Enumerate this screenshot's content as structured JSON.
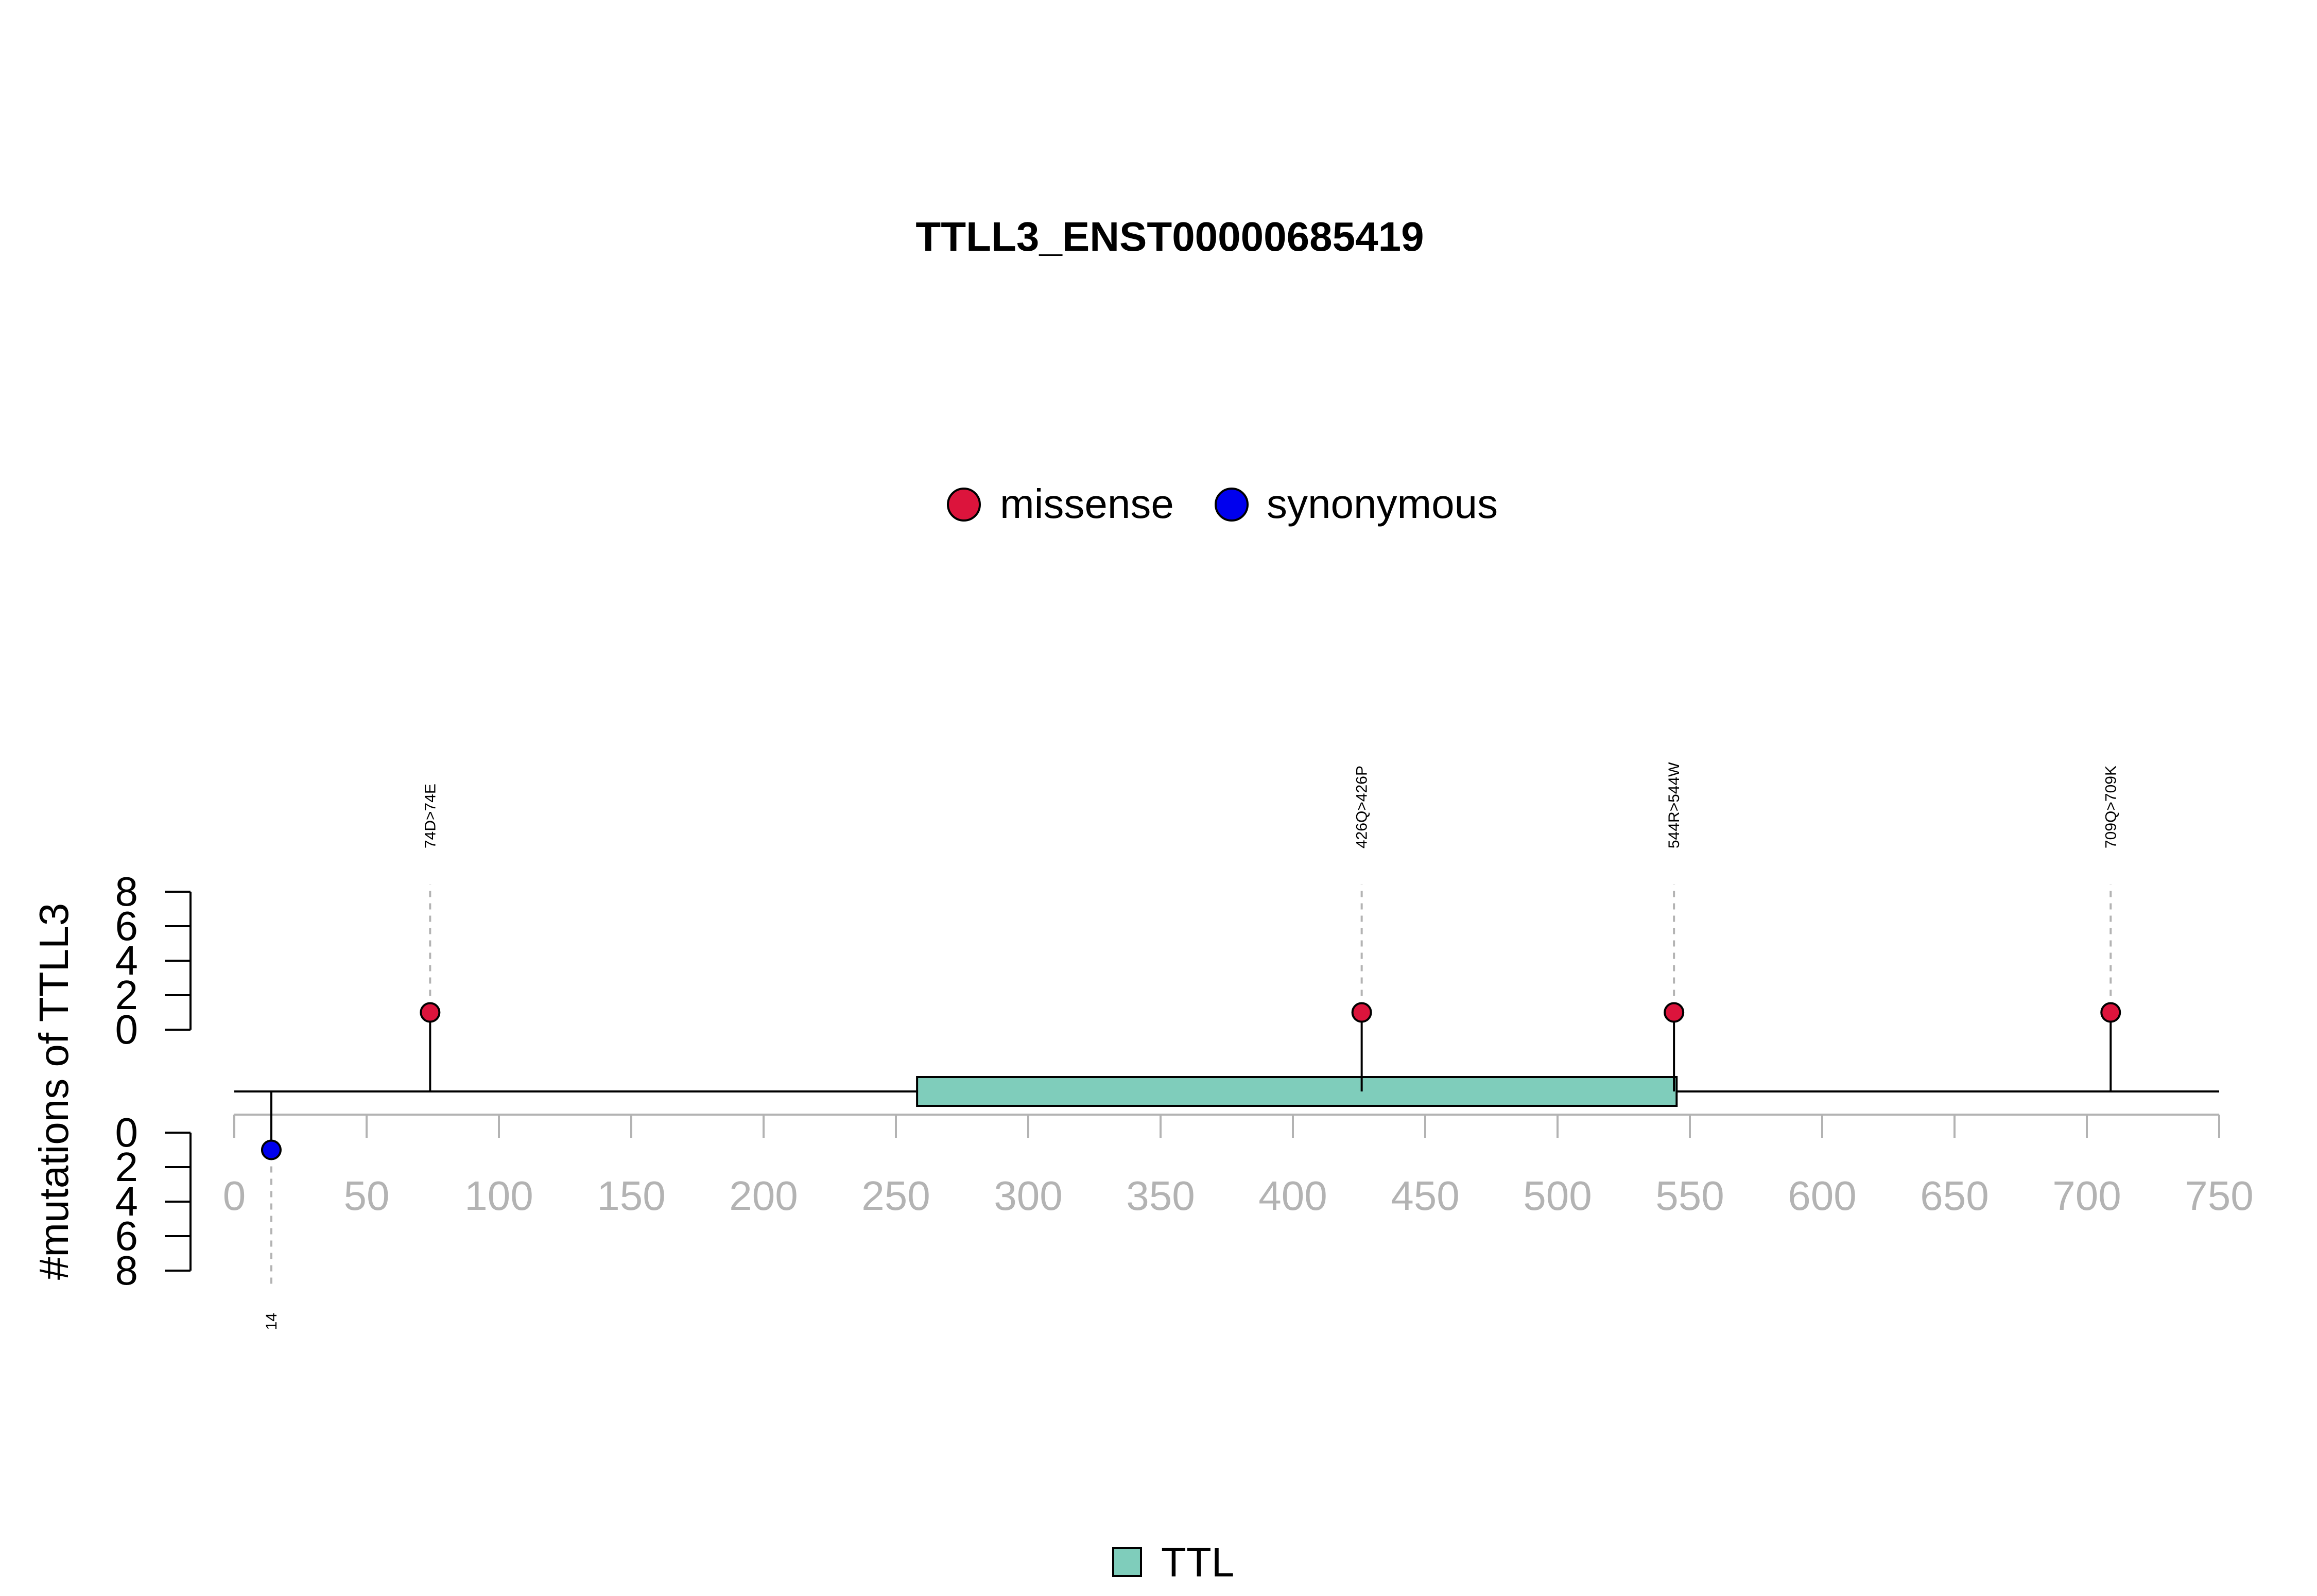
{
  "chart_data": {
    "type": "lollipop",
    "title": "TTLL3_ENST00000685419",
    "ylabel": "#mutations of TTLL3",
    "xlim": [
      0,
      750
    ],
    "x_ticks": [
      0,
      50,
      100,
      150,
      200,
      250,
      300,
      350,
      400,
      450,
      500,
      550,
      600,
      650,
      700,
      750
    ],
    "y_ticks": [
      0,
      2,
      4,
      6,
      8
    ],
    "ylim": [
      0,
      8
    ],
    "protein_length": 750,
    "legend_top": {
      "placement": "top-center",
      "items": [
        {
          "label": "missense",
          "color": "#dc143c"
        },
        {
          "label": "synonymous",
          "color": "#0000ee"
        }
      ]
    },
    "legend_bottom": {
      "placement": "bottom-center",
      "items": [
        {
          "label": "TTL",
          "color": "#7fcdbb"
        }
      ]
    },
    "domains": [
      {
        "name": "TTL",
        "start": 258,
        "end": 545,
        "color": "#7fcdbb"
      }
    ],
    "mutations": [
      {
        "position": 14,
        "label": "14",
        "type": "synonymous",
        "count": 1,
        "side": "bottom",
        "color": "#0000ee"
      },
      {
        "position": 74,
        "label": "74D>74E",
        "type": "missense",
        "count": 1,
        "side": "top",
        "color": "#dc143c"
      },
      {
        "position": 426,
        "label": "426Q>426P",
        "type": "missense",
        "count": 1,
        "side": "top",
        "color": "#dc143c"
      },
      {
        "position": 544,
        "label": "544R>544W",
        "type": "missense",
        "count": 1,
        "side": "top",
        "color": "#dc143c"
      },
      {
        "position": 709,
        "label": "709Q>709K",
        "type": "missense",
        "count": 1,
        "side": "top",
        "color": "#dc143c"
      }
    ]
  }
}
